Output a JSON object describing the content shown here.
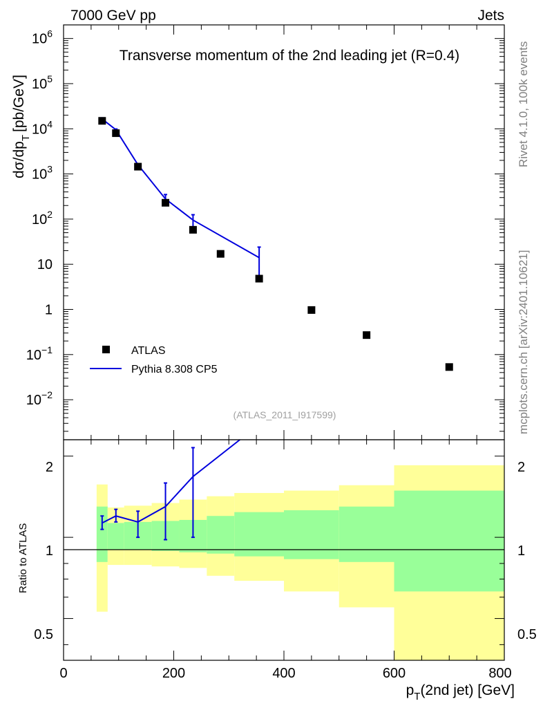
{
  "header": {
    "left": "7000 GeV pp",
    "right": "Jets",
    "title": "Transverse momentum of the 2nd leading jet (R=0.4)",
    "side_text_top": "Rivet 4.1.0,  100k events",
    "side_text_bottom": "mcplots.cern.ch [arXiv:2401.10621]",
    "analysis_id": "(ATLAS_2011_I917599)"
  },
  "colors": {
    "mc": "#0000dd",
    "data": "#000000",
    "band_inner": "#99ff99",
    "band_outer": "#ffff99",
    "side_text": "#808080"
  },
  "chart_data": [
    {
      "type": "scatter+line",
      "panel": "main",
      "title": "Transverse momentum of the 2nd leading jet (R=0.4)",
      "ylabel_main": "dσ/dp",
      "ylabel_sub": "T",
      "ylabel_unit": "[pb/GeV]",
      "yscale": "log",
      "ylim": [
        0.0013,
        2000000
      ],
      "xlim": [
        0,
        800
      ],
      "y_ticks": [
        {
          "value": 1000000,
          "base": "10",
          "exp": "6"
        },
        {
          "value": 100000,
          "base": "10",
          "exp": "5"
        },
        {
          "value": 10000,
          "base": "10",
          "exp": "4"
        },
        {
          "value": 1000,
          "base": "10",
          "exp": "3"
        },
        {
          "value": 100,
          "base": "10",
          "exp": "2"
        },
        {
          "value": 10,
          "base": "10",
          "exp": ""
        },
        {
          "value": 1,
          "base": "1",
          "exp": ""
        },
        {
          "value": 0.1,
          "base": "10",
          "exp": "−1"
        },
        {
          "value": 0.01,
          "base": "10",
          "exp": "−2"
        }
      ],
      "legend": [
        {
          "label": "ATLAS",
          "kind": "marker"
        },
        {
          "label": "Pythia 8.308 CP5",
          "kind": "line"
        }
      ],
      "series": [
        {
          "name": "ATLAS",
          "x": [
            70,
            95,
            135,
            185,
            235,
            285,
            355,
            450,
            550,
            700
          ],
          "y": [
            15000,
            8000,
            1450,
            230,
            58,
            17,
            4.8,
            0.97,
            0.27,
            0.053
          ]
        },
        {
          "name": "Pythia 8.308 CP5",
          "x": [
            70,
            95,
            135,
            185,
            235,
            355
          ],
          "y": [
            16500,
            9500,
            1600,
            280,
            95,
            14
          ],
          "err_up": [
            17500,
            9900,
            1700,
            350,
            125,
            24
          ],
          "err_down": [
            15500,
            9100,
            1500,
            220,
            60,
            4.9
          ]
        }
      ]
    },
    {
      "type": "ratio",
      "panel": "ratio",
      "ylabel": "Ratio to ATLAS",
      "ylim": [
        0.35,
        2.3
      ],
      "xlim": [
        0,
        800
      ],
      "y_ticks": [
        {
          "value": 0.5,
          "label": "0.5"
        },
        {
          "value": 1,
          "label": "1"
        },
        {
          "value": 2,
          "label": "2"
        }
      ],
      "x_ticks": [
        {
          "value": 0,
          "label": "0"
        },
        {
          "value": 200,
          "label": "200"
        },
        {
          "value": 400,
          "label": "400"
        },
        {
          "value": 600,
          "label": "600"
        },
        {
          "value": 800,
          "label": "800"
        }
      ],
      "xlabel_main": "p",
      "xlabel_sub": "T",
      "xlabel_rest": "(2nd jet) [GeV]",
      "bands": {
        "bins": [
          [
            60,
            80
          ],
          [
            80,
            110
          ],
          [
            110,
            160
          ],
          [
            160,
            210
          ],
          [
            210,
            260
          ],
          [
            260,
            310
          ],
          [
            310,
            400
          ],
          [
            400,
            500
          ],
          [
            500,
            600
          ],
          [
            600,
            800
          ]
        ],
        "inner_low": [
          0.81,
          0.9,
          0.9,
          0.89,
          0.88,
          0.87,
          0.85,
          0.83,
          0.81,
          0.63
        ],
        "inner_high": [
          1.3,
          1.13,
          1.14,
          1.15,
          1.16,
          1.2,
          1.24,
          1.26,
          1.3,
          1.49
        ],
        "outer_low": [
          0.53,
          0.79,
          0.79,
          0.78,
          0.77,
          0.72,
          0.69,
          0.63,
          0.55,
          0.35
        ],
        "outer_high": [
          1.57,
          1.29,
          1.31,
          1.34,
          1.38,
          1.42,
          1.46,
          1.49,
          1.56,
          1.85
        ]
      },
      "mc_ratio": {
        "x": [
          70,
          95,
          135,
          185,
          235,
          320
        ],
        "y": [
          1.13,
          1.2,
          1.14,
          1.3,
          1.68,
          2.3
        ],
        "err_up": [
          1.2,
          1.27,
          1.25,
          1.59,
          2.15,
          2.3
        ],
        "err_down": [
          1.07,
          1.14,
          1.0,
          0.98,
          1.0,
          2.3
        ]
      }
    }
  ]
}
